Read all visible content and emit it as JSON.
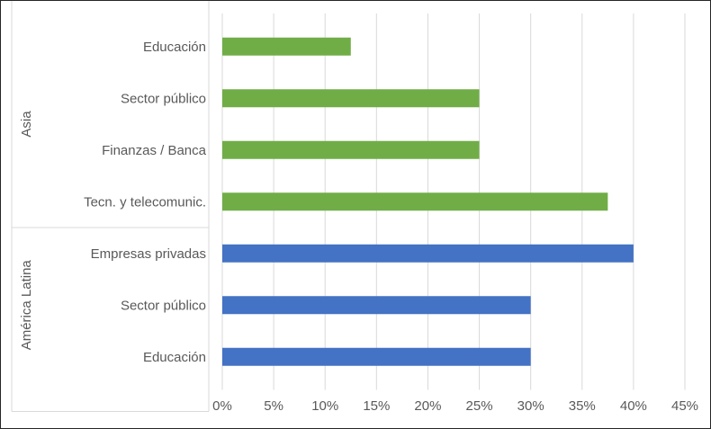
{
  "chart_data": {
    "type": "bar",
    "orientation": "horizontal",
    "title": "",
    "xlabel": "",
    "ylabel": "",
    "xlim": [
      0,
      45
    ],
    "x_ticks": [
      "0%",
      "5%",
      "10%",
      "15%",
      "20%",
      "25%",
      "30%",
      "35%",
      "40%",
      "45%"
    ],
    "grid": true,
    "groups": [
      {
        "name": "Asia",
        "color": "#70AD47",
        "categories": [
          "Educación",
          "Sector público",
          "Finanzas / Banca",
          "Tecn. y telecomunic."
        ],
        "values": [
          12.5,
          25,
          25,
          37.5
        ]
      },
      {
        "name": "América Latina",
        "color": "#4472C4",
        "categories": [
          "Empresas privadas",
          "Sector público",
          "Educación"
        ],
        "values": [
          40,
          30,
          30
        ]
      }
    ]
  }
}
